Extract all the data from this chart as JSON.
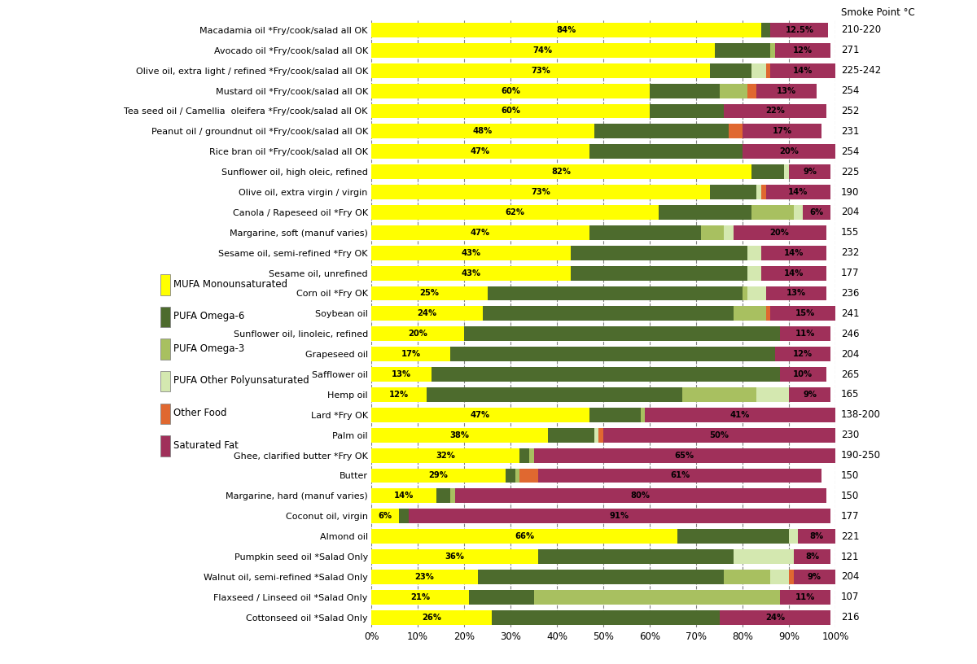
{
  "oils": [
    "Macadamia oil *Fry/cook/salad all OK",
    "Avocado oil *Fry/cook/salad all OK",
    "Olive oil, extra light / refined *Fry/cook/salad all OK",
    "Mustard oil *Fry/cook/salad all OK",
    "Tea seed oil / Camellia  oleifera *Fry/cook/salad all OK",
    "Peanut oil / groundnut oil *Fry/cook/salad all OK",
    "Rice bran oil *Fry/cook/salad all OK",
    "Sunflower oil, high oleic, refined",
    "Olive oil, extra virgin / virgin",
    "Canola / Rapeseed oil *Fry OK",
    "Margarine, soft (manuf varies)",
    "Sesame oil, semi-refined *Fry OK",
    "Sesame oil, unrefined",
    "Corn oil *Fry OK",
    "Soybean oil",
    "Sunflower oil, linoleic, refined",
    "Grapeseed oil",
    "Safflower oil",
    "Hemp oil",
    "Lard *Fry OK",
    "Palm oil",
    "Ghee, clarified butter *Fry OK",
    "Butter",
    "Margarine, hard (manuf varies)",
    "Coconut oil, virgin",
    "Almond oil",
    "Pumpkin seed oil *Salad Only",
    "Walnut oil, semi-refined *Salad Only",
    "Flaxseed / Linseed oil *Salad Only",
    "Cottonseed oil *Salad Only"
  ],
  "smoke_points": [
    "210-220",
    "271",
    "225-242",
    "254",
    "252",
    "231",
    "254",
    "225",
    "190",
    "204",
    "155",
    "232",
    "177",
    "236",
    "241",
    "246",
    "204",
    "265",
    "165",
    "138-200",
    "230",
    "190-250",
    "150",
    "150",
    "177",
    "221",
    "121",
    "204",
    "107",
    "216"
  ],
  "mufa_label": [
    "84%",
    "74%",
    "73%",
    "60%",
    "60%",
    "48%",
    "47%",
    "82%",
    "73%",
    "62%",
    "47%",
    "43%",
    "43%",
    "25%",
    "24%",
    "20%",
    "17%",
    "13%",
    "12%",
    "47%",
    "38%",
    "32%",
    "29%",
    "14%",
    "6%",
    "66%",
    "36%",
    "23%",
    "21%",
    "26%"
  ],
  "sat_label": [
    "12.5%",
    "12%",
    "14%",
    "13%",
    "22%",
    "17%",
    "20%",
    "9%",
    "14%",
    "6%",
    "20%",
    "14%",
    "14%",
    "13%",
    "15%",
    "11%",
    "12%",
    "10%",
    "9%",
    "41%",
    "50%",
    "65%",
    "61%",
    "80%",
    "91%",
    "8%",
    "8%",
    "9%",
    "11%",
    "24%"
  ],
  "segments": [
    {
      "mufa": 84,
      "o6": 2,
      "o3": 0,
      "other_pufa": 0,
      "other_food": 0,
      "sat": 12.5
    },
    {
      "mufa": 74,
      "o6": 12,
      "o3": 1,
      "other_pufa": 0,
      "other_food": 0,
      "sat": 12
    },
    {
      "mufa": 73,
      "o6": 9,
      "o3": 0,
      "other_pufa": 3,
      "other_food": 1,
      "sat": 14
    },
    {
      "mufa": 60,
      "o6": 15,
      "o3": 6,
      "other_pufa": 0,
      "other_food": 2,
      "sat": 13
    },
    {
      "mufa": 60,
      "o6": 16,
      "o3": 0,
      "other_pufa": 0,
      "other_food": 0,
      "sat": 22
    },
    {
      "mufa": 48,
      "o6": 29,
      "o3": 0,
      "other_pufa": 0,
      "other_food": 3,
      "sat": 17
    },
    {
      "mufa": 47,
      "o6": 33,
      "o3": 0,
      "other_pufa": 0,
      "other_food": 0,
      "sat": 20
    },
    {
      "mufa": 82,
      "o6": 7,
      "o3": 0,
      "other_pufa": 1,
      "other_food": 0,
      "sat": 9
    },
    {
      "mufa": 73,
      "o6": 10,
      "o3": 0,
      "other_pufa": 1,
      "other_food": 1,
      "sat": 14
    },
    {
      "mufa": 62,
      "o6": 20,
      "o3": 9,
      "other_pufa": 2,
      "other_food": 0,
      "sat": 6
    },
    {
      "mufa": 47,
      "o6": 24,
      "o3": 5,
      "other_pufa": 2,
      "other_food": 0,
      "sat": 20
    },
    {
      "mufa": 43,
      "o6": 38,
      "o3": 0,
      "other_pufa": 3,
      "other_food": 0,
      "sat": 14
    },
    {
      "mufa": 43,
      "o6": 38,
      "o3": 0,
      "other_pufa": 3,
      "other_food": 0,
      "sat": 14
    },
    {
      "mufa": 25,
      "o6": 55,
      "o3": 1,
      "other_pufa": 4,
      "other_food": 0,
      "sat": 13
    },
    {
      "mufa": 24,
      "o6": 54,
      "o3": 7,
      "other_pufa": 0,
      "other_food": 1,
      "sat": 15
    },
    {
      "mufa": 20,
      "o6": 68,
      "o3": 0,
      "other_pufa": 0,
      "other_food": 0,
      "sat": 11
    },
    {
      "mufa": 17,
      "o6": 70,
      "o3": 0,
      "other_pufa": 0,
      "other_food": 0,
      "sat": 12
    },
    {
      "mufa": 13,
      "o6": 75,
      "o3": 0,
      "other_pufa": 0,
      "other_food": 0,
      "sat": 10
    },
    {
      "mufa": 12,
      "o6": 55,
      "o3": 16,
      "other_pufa": 7,
      "other_food": 0,
      "sat": 9
    },
    {
      "mufa": 47,
      "o6": 11,
      "o3": 1,
      "other_pufa": 0,
      "other_food": 0,
      "sat": 41
    },
    {
      "mufa": 38,
      "o6": 10,
      "o3": 0,
      "other_pufa": 1,
      "other_food": 1,
      "sat": 50
    },
    {
      "mufa": 32,
      "o6": 2,
      "o3": 1,
      "other_pufa": 0,
      "other_food": 0,
      "sat": 65
    },
    {
      "mufa": 29,
      "o6": 2,
      "o3": 1,
      "other_pufa": 0,
      "other_food": 4,
      "sat": 61
    },
    {
      "mufa": 14,
      "o6": 3,
      "o3": 1,
      "other_pufa": 0,
      "other_food": 0,
      "sat": 80
    },
    {
      "mufa": 6,
      "o6": 2,
      "o3": 0,
      "other_pufa": 0,
      "other_food": 0,
      "sat": 91
    },
    {
      "mufa": 66,
      "o6": 24,
      "o3": 0,
      "other_pufa": 2,
      "other_food": 0,
      "sat": 8
    },
    {
      "mufa": 36,
      "o6": 42,
      "o3": 0,
      "other_pufa": 13,
      "other_food": 0,
      "sat": 8
    },
    {
      "mufa": 23,
      "o6": 53,
      "o3": 10,
      "other_pufa": 4,
      "other_food": 1,
      "sat": 9
    },
    {
      "mufa": 21,
      "o6": 14,
      "o3": 53,
      "other_pufa": 0,
      "other_food": 0,
      "sat": 11
    },
    {
      "mufa": 26,
      "o6": 49,
      "o3": 0,
      "other_pufa": 0,
      "other_food": 0,
      "sat": 24
    }
  ],
  "colors": {
    "mufa": "#FFFF00",
    "o6": "#4D6B2D",
    "o3": "#A8C060",
    "other_pufa": "#D4E8B0",
    "other_food": "#E06830",
    "sat": "#A0305A"
  },
  "legend_labels": {
    "mufa": "MUFA Monounsaturated",
    "o6": "PUFA Omega-6",
    "o3": "PUFA Omega-3",
    "other_pufa": "PUFA Other Polyunsaturated",
    "other_food": "Other Food",
    "sat": "Saturated Fat"
  },
  "legend_box_colors": {
    "mufa": "#FFFF00",
    "o6": "#4D6B2D",
    "o3": "#A8C060",
    "other_pufa": "#D4E8B0",
    "other_food": "#E06830",
    "sat": "#A0305A"
  }
}
